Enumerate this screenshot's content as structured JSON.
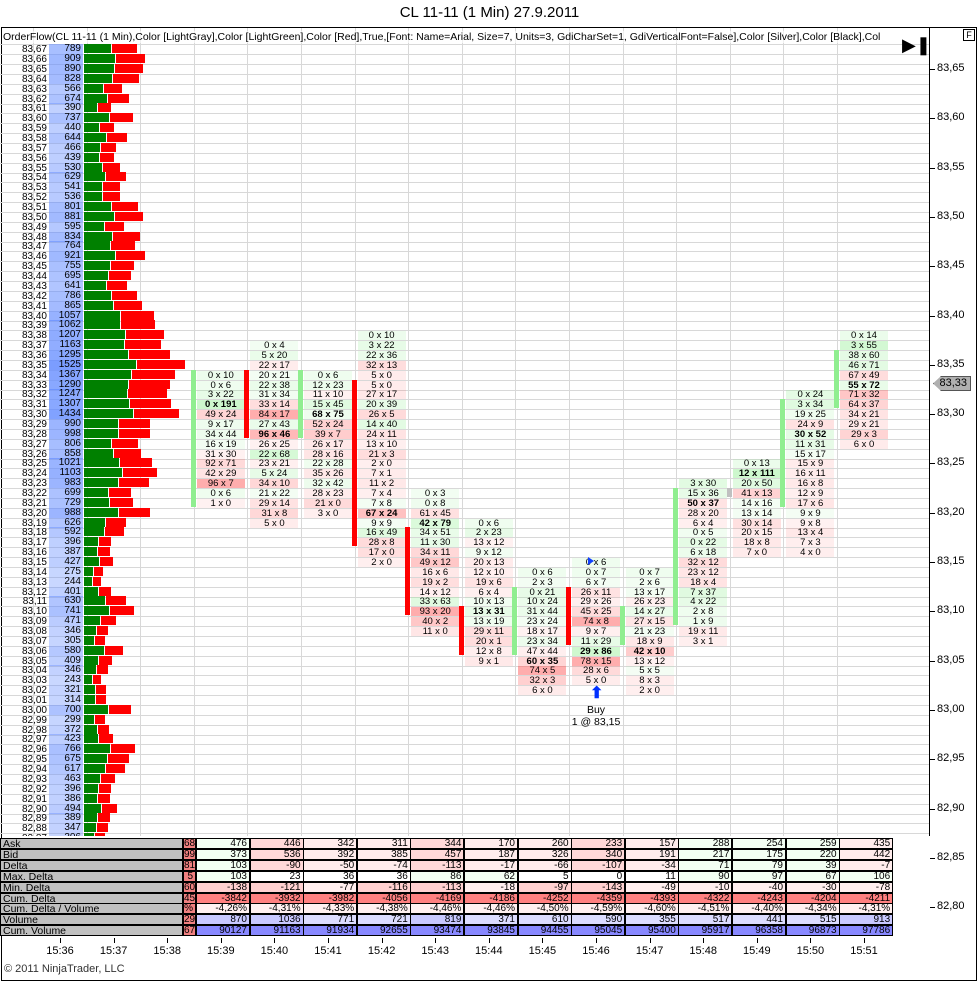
{
  "window": {
    "title": "CL 11-11 (1 Min)  27.9.2011"
  },
  "indicator_label": "OrderFlow(CL 11-11 (1 Min),Color [LightGray],Color [LightGreen],Color [Red],True,[Font: Name=Arial, Size=7, Units=3, GdiCharSet=1, GdiVerticalFont=False],Color [Silver],Color [Black],Col",
  "buttons": {
    "f_label": "F",
    "end_icon": "skip-to-end-icon"
  },
  "colors": {
    "up": "#90ee90",
    "down": "#ff0000",
    "ask_bar": "#008000",
    "bid_bar": "#ff0000",
    "volume_bg": "#b4c8ff"
  },
  "current_price": "83,33",
  "price_axis": [
    "83,65",
    "83,60",
    "83,55",
    "83,50",
    "83,45",
    "83,40",
    "83,35",
    "83,30",
    "83,25",
    "83,20",
    "83,15",
    "83,10",
    "83,05",
    "83,00",
    "82,95",
    "82,90",
    "82,85",
    "82,80"
  ],
  "ladder": [
    [
      "83,67",
      789
    ],
    [
      "83,66",
      909
    ],
    [
      "83,65",
      890
    ],
    [
      "83,64",
      828
    ],
    [
      "83,63",
      566
    ],
    [
      "83,62",
      674
    ],
    [
      "83,61",
      390
    ],
    [
      "83,60",
      737
    ],
    [
      "83,59",
      440
    ],
    [
      "83,58",
      644
    ],
    [
      "83,57",
      466
    ],
    [
      "83,56",
      439
    ],
    [
      "83,55",
      530
    ],
    [
      "83,54",
      629
    ],
    [
      "83,53",
      541
    ],
    [
      "83,52",
      536
    ],
    [
      "83,51",
      801
    ],
    [
      "83,50",
      881
    ],
    [
      "83,49",
      595
    ],
    [
      "83,48",
      834
    ],
    [
      "83,47",
      764
    ],
    [
      "83,46",
      921
    ],
    [
      "83,45",
      755
    ],
    [
      "83,44",
      695
    ],
    [
      "83,43",
      641
    ],
    [
      "83,42",
      786
    ],
    [
      "83,41",
      865
    ],
    [
      "83,40",
      1057
    ],
    [
      "83,39",
      1062
    ],
    [
      "83,38",
      1207
    ],
    [
      "83,37",
      1163
    ],
    [
      "83,36",
      1295
    ],
    [
      "83,35",
      1525
    ],
    [
      "83,34",
      1367
    ],
    [
      "83,33",
      1290
    ],
    [
      "83,32",
      1247
    ],
    [
      "83,31",
      1307
    ],
    [
      "83,30",
      1434
    ],
    [
      "83,29",
      990
    ],
    [
      "83,28",
      998
    ],
    [
      "83,27",
      806
    ],
    [
      "83,26",
      858
    ],
    [
      "83,25",
      1021
    ],
    [
      "83,24",
      1103
    ],
    [
      "83,23",
      983
    ],
    [
      "83,22",
      699
    ],
    [
      "83,21",
      729
    ],
    [
      "83,20",
      988
    ],
    [
      "83,19",
      626
    ],
    [
      "83,18",
      592
    ],
    [
      "83,17",
      396
    ],
    [
      "83,16",
      387
    ],
    [
      "83,15",
      427
    ],
    [
      "83,14",
      275
    ],
    [
      "83,13",
      244
    ],
    [
      "83,12",
      401
    ],
    [
      "83,11",
      630
    ],
    [
      "83,10",
      741
    ],
    [
      "83,09",
      471
    ],
    [
      "83,08",
      346
    ],
    [
      "83,07",
      305
    ],
    [
      "83,06",
      580
    ],
    [
      "83,05",
      409
    ],
    [
      "83,04",
      346
    ],
    [
      "83,03",
      243
    ],
    [
      "83,02",
      321
    ],
    [
      "83,01",
      314
    ],
    [
      "83,00",
      700
    ],
    [
      "82,99",
      299
    ],
    [
      "82,98",
      372
    ],
    [
      "82,97",
      423
    ],
    [
      "82,96",
      766
    ],
    [
      "82,95",
      675
    ],
    [
      "82,94",
      617
    ],
    [
      "82,93",
      463
    ],
    [
      "82,92",
      396
    ],
    [
      "82,91",
      386
    ],
    [
      "82,90",
      494
    ],
    [
      "82,89",
      389
    ],
    [
      "82,88",
      347
    ],
    [
      "82,87",
      306
    ]
  ],
  "bars": [
    {
      "time": "15:39",
      "top": 83.34,
      "open": 83.21,
      "close": 83.34,
      "cells": [
        "0 x 10",
        "0 x 6",
        "3 x 22",
        "0 x 191",
        "49 x 24",
        "9 x 17",
        "34 x 44",
        "16 x 19",
        "31 x 30",
        "92 x 71",
        "42 x 29",
        "96 x 7",
        "0 x 6",
        "1 x 0"
      ]
    },
    {
      "time": "15:40",
      "top": 83.37,
      "open": 83.34,
      "close": 83.28,
      "cells": [
        "0 x 4",
        "5 x 20",
        "22 x 17",
        "20 x 21",
        "22 x 38",
        "31 x 34",
        "33 x 14",
        "84 x 17",
        "27 x 43",
        "96 x 46",
        "26 x 25",
        "22 x 68",
        "23 x 21",
        "5 x 24",
        "34 x 10",
        "21 x 22",
        "29 x 14",
        "31 x 8",
        "5 x 0"
      ]
    },
    {
      "time": "15:41",
      "top": 83.34,
      "open": 83.28,
      "close": 83.34,
      "cells": [
        "0 x 6",
        "12 x 23",
        "11 x 10",
        "15 x 45",
        "68 x 75",
        "52 x 24",
        "39 x 7",
        "26 x 17",
        "28 x 16",
        "22 x 28",
        "35 x 26",
        "32 x 42",
        "28 x 23",
        "21 x 0",
        "3 x 0"
      ]
    },
    {
      "time": "15:42",
      "top": 83.38,
      "open": 83.33,
      "close": 83.17,
      "cells": [
        "0 x 10",
        "3 x 22",
        "22 x 36",
        "32 x 13",
        "5 x 0",
        "5 x 0",
        "27 x 17",
        "20 x 39",
        "26 x 5",
        "14 x 40",
        "24 x 11",
        "13 x 10",
        "21 x 3",
        "2 x 0",
        "7 x 1",
        "11 x 2",
        "7 x 4",
        "7 x 8",
        "67 x 24",
        "9 x 9",
        "16 x 49",
        "28 x 8",
        "17 x 0",
        "2 x 0"
      ]
    },
    {
      "time": "15:43",
      "top": 83.22,
      "open": 83.18,
      "close": 83.1,
      "cells": [
        "0 x 3",
        "0 x 8",
        "61 x 45",
        "42 x 79",
        "34 x 51",
        "11 x 30",
        "34 x 11",
        "49 x 12",
        "16 x 6",
        "19 x 2",
        "14 x 12",
        "33 x 63",
        "93 x 20",
        "40 x 2",
        "11 x 0"
      ]
    },
    {
      "time": "15:44",
      "top": 83.19,
      "open": 83.1,
      "close": 83.06,
      "cells": [
        "0 x 6",
        "2 x 23",
        "13 x 12",
        "9 x 12",
        "20 x 13",
        "12 x 10",
        "19 x 6",
        "6 x 4",
        "10 x 13",
        "13 x 31",
        "13 x 19",
        "29 x 11",
        "20 x 1",
        "12 x 8",
        "9 x 1"
      ]
    },
    {
      "time": "15:45",
      "top": 83.14,
      "open": 83.06,
      "close": 83.12,
      "cells": [
        "0 x 6",
        "2 x 3",
        "0 x 21",
        "10 x 24",
        "31 x 44",
        "23 x 24",
        "18 x 17",
        "23 x 34",
        "47 x 44",
        "60 x 35",
        "74 x 5",
        "32 x 3",
        "6 x 0"
      ]
    },
    {
      "time": "15:46",
      "top": 83.15,
      "open": 83.12,
      "close": 83.07,
      "cells": [
        "0 x 6",
        "0 x 7",
        "6 x 7",
        "26 x 11",
        "29 x 26",
        "45 x 25",
        "74 x 8",
        "9 x 7",
        "11 x 29",
        "29 x 86",
        "78 x 15",
        "28 x 6",
        "5 x 0"
      ]
    },
    {
      "time": "15:47",
      "top": 83.14,
      "open": 83.07,
      "close": 83.1,
      "cells": [
        "0 x 7",
        "2 x 6",
        "13 x 17",
        "26 x 23",
        "14 x 27",
        "27 x 15",
        "21 x 23",
        "18 x 9",
        "42 x 10",
        "13 x 12",
        "5 x 5",
        "8 x 3",
        "2 x 0"
      ]
    },
    {
      "time": "15:48",
      "top": 83.23,
      "open": 83.09,
      "close": 83.22,
      "cells": [
        "3 x 30",
        "15 x 36",
        "50 x 37",
        "28 x 20",
        "6 x 4",
        "0 x 5",
        "0 x 22",
        "6 x 18",
        "32 x 12",
        "23 x 12",
        "18 x 4",
        "7 x 37",
        "4 x 22",
        "2 x 8",
        "1 x 9",
        "19 x 11",
        "3 x 1"
      ]
    },
    {
      "time": "15:49",
      "top": 83.25,
      "open": 83.22,
      "close": 83.22,
      "cells": [
        "0 x 13",
        "12 x 111",
        "20 x 50",
        "41 x 13",
        "14 x 16",
        "13 x 14",
        "30 x 14",
        "20 x 15",
        "18 x 8",
        "7 x 0"
      ]
    },
    {
      "time": "15:50",
      "top": 83.32,
      "open": 83.21,
      "close": 83.31,
      "cells": [
        "0 x 24",
        "3 x 34",
        "19 x 25",
        "24 x 9",
        "30 x 52",
        "11 x 31",
        "15 x 17",
        "15 x 9",
        "16 x 11",
        "16 x 8",
        "12 x 9",
        "17 x 6",
        "9 x 9",
        "9 x 8",
        "13 x 4",
        "7 x 3",
        "4 x 0"
      ]
    },
    {
      "time": "15:51",
      "top": 83.38,
      "open": 83.31,
      "close": 83.36,
      "cells": [
        "0 x 14",
        "3 x 55",
        "38 x 60",
        "46 x 71",
        "67 x 49",
        "55 x 72",
        "71 x 32",
        "64 x 37",
        "34 x 21",
        "29 x 21",
        "29 x 3",
        "6 x 0"
      ]
    }
  ],
  "order": {
    "action": "Buy",
    "detail": "1 @ 83,15",
    "time": "15:46",
    "price": 83.15
  },
  "time_axis": [
    "15:36",
    "15:37",
    "15:38",
    "15:39",
    "15:40",
    "15:41",
    "15:42",
    "15:43",
    "15:44",
    "15:45",
    "15:46",
    "15:47",
    "15:48",
    "15:49",
    "15:50",
    "15:51"
  ],
  "table": {
    "rows": [
      "Ask",
      "Bid",
      "Delta",
      "Max. Delta",
      "Min. Delta",
      "Cum. Delta",
      "Cum. Delta / Volume",
      "Volume",
      "Cum. Volume"
    ],
    "partial_column": [
      "68",
      "99",
      "81",
      "5",
      "60",
      "45",
      "%",
      "29",
      "67"
    ],
    "columns": [
      [
        "476",
        "373",
        "103",
        "103",
        "-138",
        "-3842",
        "-4,26%",
        "870",
        "90127"
      ],
      [
        "446",
        "536",
        "-90",
        "23",
        "-121",
        "-3932",
        "-4,31%",
        "1036",
        "91163"
      ],
      [
        "342",
        "392",
        "-50",
        "36",
        "-77",
        "-3982",
        "-4,33%",
        "771",
        "91934"
      ],
      [
        "311",
        "385",
        "-74",
        "36",
        "-116",
        "-4056",
        "-4,38%",
        "721",
        "92655"
      ],
      [
        "344",
        "457",
        "-113",
        "86",
        "-113",
        "-4169",
        "-4,46%",
        "819",
        "93474"
      ],
      [
        "170",
        "187",
        "-17",
        "62",
        "-18",
        "-4186",
        "-4,46%",
        "371",
        "93845"
      ],
      [
        "260",
        "326",
        "-66",
        "5",
        "-97",
        "-4252",
        "-4,50%",
        "610",
        "94455"
      ],
      [
        "233",
        "340",
        "-107",
        "0",
        "-143",
        "-4359",
        "-4,59%",
        "590",
        "95045"
      ],
      [
        "157",
        "191",
        "-34",
        "11",
        "-49",
        "-4393",
        "-4,60%",
        "355",
        "95400"
      ],
      [
        "288",
        "217",
        "71",
        "90",
        "-10",
        "-4322",
        "-4,51%",
        "517",
        "95917"
      ],
      [
        "254",
        "175",
        "79",
        "97",
        "-40",
        "-4243",
        "-4,40%",
        "441",
        "96358"
      ],
      [
        "259",
        "220",
        "39",
        "67",
        "-30",
        "-4204",
        "-4,34%",
        "515",
        "96873"
      ],
      [
        "435",
        "442",
        "-7",
        "106",
        "-78",
        "-4211",
        "-4,31%",
        "913",
        "97786"
      ]
    ]
  },
  "copyright": "© 2011 NinjaTrader, LLC"
}
